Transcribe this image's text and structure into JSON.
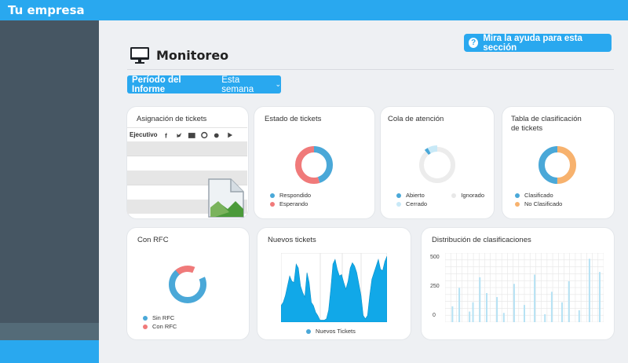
{
  "app": {
    "brand": "Tu empresa"
  },
  "header": {
    "help_button": "Mira la ayuda para esta sección",
    "title": "Monitoreo",
    "period_label": "Período del Informe",
    "period_value": "Esta semana"
  },
  "cards": {
    "assignment": {
      "title": "Asignación de tickets",
      "column": "Ejecutivo",
      "channel_icons": [
        "facebook-icon",
        "twitter-icon",
        "email-icon",
        "chat-icon",
        "apple-icon",
        "play-store-icon"
      ]
    },
    "status": {
      "title": "Estado de tickets",
      "legend": [
        {
          "label": "Respondido",
          "color": "#4aa8d8"
        },
        {
          "label": "Esperando",
          "color": "#f07a7a"
        }
      ]
    },
    "queue": {
      "title": "Cola de atención",
      "legend": [
        {
          "label": "Abierto",
          "color": "#4aa8d8"
        },
        {
          "label": "Ignorado",
          "color": "#e8e8e8"
        },
        {
          "label": "Cerrado",
          "color": "#c8e9f7"
        }
      ]
    },
    "classification": {
      "title_line1": "Tabla de clasificación",
      "title_line2": "de tickets",
      "legend": [
        {
          "label": "Clasificado",
          "color": "#4aa8d8"
        },
        {
          "label": "No Clasificado",
          "color": "#f7b26e"
        }
      ]
    },
    "rfc": {
      "title": "Con RFC",
      "legend": [
        {
          "label": "Sin RFC",
          "color": "#4aa8d8"
        },
        {
          "label": "Con RFC",
          "color": "#f07a7a"
        }
      ]
    },
    "new_tickets": {
      "title": "Nuevos tickets",
      "legend_label": "Nuevos Tickets",
      "color": "#11a8e8"
    },
    "distribution": {
      "title": "Distribución de clasificaciones",
      "ticks": [
        "500",
        "250",
        "0"
      ],
      "bar_color": "#b6e2f4"
    }
  },
  "chart_data": [
    {
      "type": "pie",
      "title": "Estado de tickets",
      "categories": [
        "Respondido",
        "Esperando"
      ],
      "values": [
        45,
        55
      ]
    },
    {
      "type": "pie",
      "title": "Cola de atención",
      "categories": [
        "Abierto",
        "Ignorado",
        "Cerrado"
      ],
      "values": [
        3,
        85,
        12
      ]
    },
    {
      "type": "pie",
      "title": "Tabla de clasificación de tickets",
      "categories": [
        "Clasificado",
        "No Clasificado"
      ],
      "values": [
        50,
        50
      ]
    },
    {
      "type": "pie",
      "title": "Con RFC",
      "categories": [
        "Sin RFC",
        "Con RFC"
      ],
      "values": [
        75,
        25
      ]
    },
    {
      "type": "area",
      "title": "Nuevos tickets",
      "series": [
        {
          "name": "Nuevos Tickets",
          "values": [
            25,
            30,
            40,
            55,
            70,
            62,
            60,
            88,
            82,
            55,
            45,
            38,
            75,
            60,
            30,
            25,
            15,
            10,
            3,
            3,
            3,
            5,
            18,
            50,
            88,
            95,
            80,
            70,
            72,
            60,
            50,
            62,
            82,
            90,
            85,
            75,
            58,
            40,
            10,
            5,
            10,
            40,
            65,
            75,
            85,
            95,
            80,
            78,
            92,
            100
          ]
        }
      ]
    },
    {
      "type": "bar",
      "title": "Distribución de clasificaciones",
      "ylim": [
        0,
        500
      ],
      "values": [
        0,
        120,
        0,
        260,
        0,
        0,
        80,
        150,
        0,
        340,
        0,
        220,
        0,
        0,
        190,
        0,
        70,
        0,
        0,
        290,
        0,
        0,
        130,
        0,
        0,
        360,
        0,
        0,
        60,
        0,
        230,
        0,
        0,
        150,
        0,
        310,
        0,
        0,
        90,
        0,
        0,
        480,
        0,
        0,
        380
      ]
    }
  ]
}
